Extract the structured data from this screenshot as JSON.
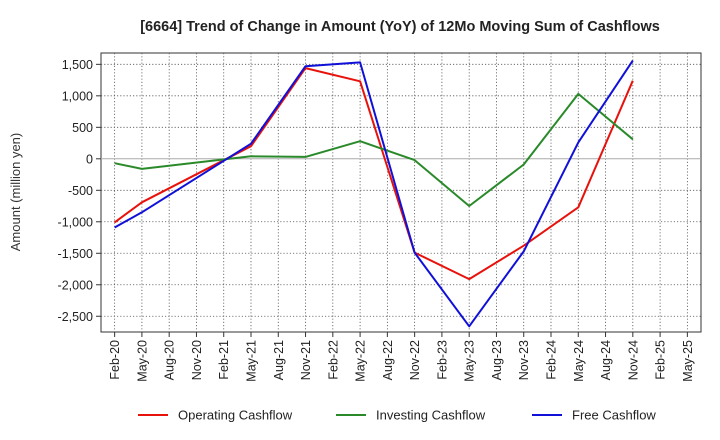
{
  "chart_data": {
    "type": "line",
    "title": "[6664]  Trend of Change in Amount (YoY) of 12Mo Moving Sum of Cashflows",
    "xlabel": "",
    "ylabel": "Amount (million yen)",
    "ylim": [
      -2750,
      1680
    ],
    "yticks": [
      1500,
      1000,
      500,
      0,
      -500,
      -1000,
      -1500,
      -2000,
      -2500
    ],
    "ytick_labels": [
      "1,500",
      "1,000",
      "500",
      "0",
      "-500",
      "-1,000",
      "-1,500",
      "-2,000",
      "-2,500"
    ],
    "categories": [
      "Feb-20",
      "May-20",
      "Aug-20",
      "Nov-20",
      "Feb-21",
      "May-21",
      "Aug-21",
      "Nov-21",
      "Feb-22",
      "May-22",
      "Aug-22",
      "Nov-22",
      "Feb-23",
      "May-23",
      "Aug-23",
      "Nov-23",
      "Feb-24",
      "May-24",
      "Aug-24",
      "Nov-24",
      "Feb-25",
      "May-25"
    ],
    "grid": true,
    "legend_position": "bottom",
    "series": [
      {
        "name": "Operating Cashflow",
        "color": "#e8120c",
        "values": [
          -1010,
          -690,
          null,
          null,
          null,
          200,
          null,
          1440,
          null,
          1230,
          null,
          -1490,
          null,
          -1910,
          null,
          -1380,
          null,
          -770,
          null,
          1240,
          null,
          null
        ]
      },
      {
        "name": "Investing Cashflow",
        "color": "#2a8a2a",
        "values": [
          -70,
          -160,
          null,
          null,
          null,
          40,
          null,
          30,
          null,
          280,
          null,
          -20,
          null,
          -750,
          null,
          -90,
          null,
          1030,
          null,
          310,
          null,
          null
        ]
      },
      {
        "name": "Free Cashflow",
        "color": "#1010d8",
        "values": [
          -1090,
          -850,
          null,
          null,
          null,
          240,
          null,
          1470,
          null,
          1530,
          null,
          -1490,
          null,
          -2660,
          null,
          -1470,
          null,
          260,
          null,
          1560,
          null,
          null
        ]
      }
    ]
  }
}
